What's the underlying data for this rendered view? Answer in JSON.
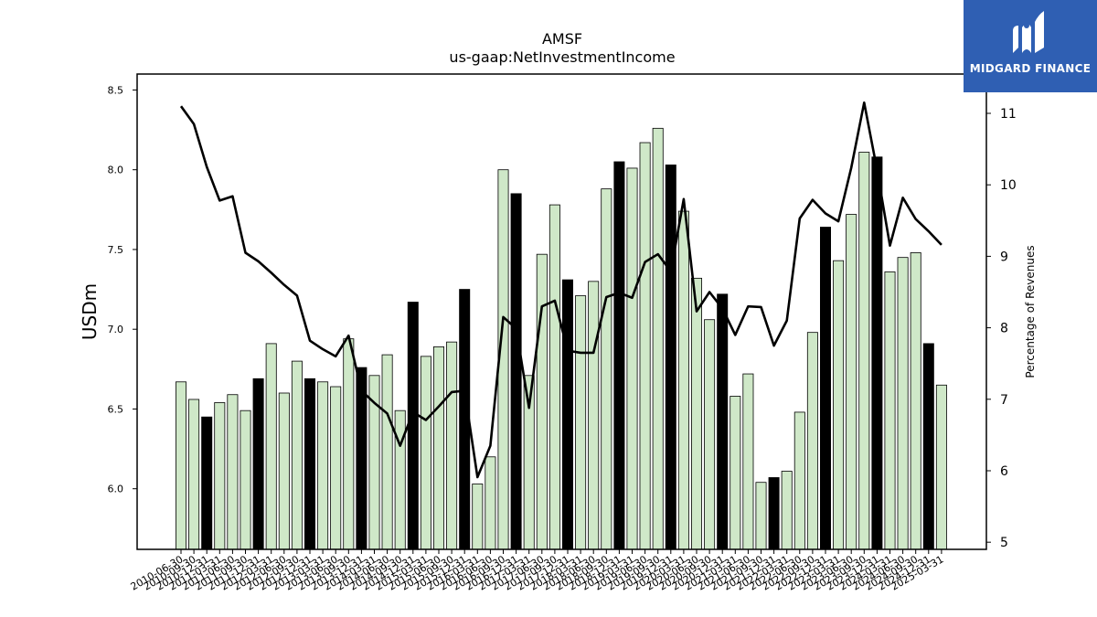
{
  "chart_data": {
    "type": "bar",
    "title": "AMSF",
    "subtitle": "us-gaap:NetInvestmentIncome",
    "ylabel": "USDm",
    "y2label": "Percentage of Revenues",
    "ylim": [
      5.62,
      8.6
    ],
    "y2lim": [
      4.9,
      11.55
    ],
    "yticks": [
      6.0,
      6.5,
      7.0,
      7.5,
      8.0,
      8.5
    ],
    "yticklabels": [
      "6.0",
      "6.5",
      "7.0",
      "7.5",
      "8.0",
      "8.5"
    ],
    "y2ticks": [
      5,
      6,
      7,
      8,
      9,
      10,
      11
    ],
    "y2ticklabels": [
      "5",
      "6",
      "7",
      "8",
      "9",
      "10",
      "11"
    ],
    "categories": [
      "2010-06-30",
      "2010-09-30",
      "2010-12-31",
      "2011-03-31",
      "2011-06-30",
      "2011-09-30",
      "2011-12-31",
      "2012-03-31",
      "2012-06-30",
      "2012-09-30",
      "2012-12-31",
      "2013-03-31",
      "2013-06-30",
      "2013-09-30",
      "2013-12-31",
      "2014-03-31",
      "2014-06-30",
      "2014-09-30",
      "2014-12-31",
      "2015-03-31",
      "2015-06-30",
      "2015-09-30",
      "2015-12-31",
      "2016-03-31",
      "2016-06-30",
      "2016-09-30",
      "2016-12-31",
      "2017-03-31",
      "2017-06-30",
      "2017-09-30",
      "2017-12-31",
      "2018-03-31",
      "2018-06-30",
      "2018-09-30",
      "2018-12-31",
      "2019-03-31",
      "2019-06-30",
      "2019-09-30",
      "2019-12-31",
      "2020-03-31",
      "2020-06-30",
      "2020-09-30",
      "2020-12-31",
      "2021-03-31",
      "2021-06-30",
      "2021-09-30",
      "2021-12-31",
      "2022-03-31",
      "2022-06-30",
      "2022-09-30",
      "2022-12-31",
      "2023-03-31",
      "2023-06-30",
      "2023-09-30",
      "2023-12-31",
      "2024-03-31",
      "2024-06-30",
      "2024-09-30",
      "2024-12-31",
      "2025-03-31"
    ],
    "series": [
      {
        "kind": "bar",
        "axis": "left",
        "values": [
          6.67,
          6.56,
          6.45,
          6.54,
          6.59,
          6.49,
          6.69,
          6.91,
          6.6,
          6.8,
          6.69,
          6.67,
          6.64,
          6.94,
          6.76,
          6.71,
          6.84,
          6.49,
          7.17,
          6.83,
          6.89,
          6.92,
          7.25,
          6.03,
          6.2,
          8.0,
          7.85,
          6.71,
          7.47,
          7.78,
          7.31,
          7.21,
          7.3,
          7.88,
          8.05,
          8.01,
          8.17,
          8.26,
          8.03,
          7.74,
          7.32,
          7.06,
          7.22,
          6.58,
          6.72,
          6.04,
          6.07,
          6.11,
          6.48,
          6.98,
          7.64,
          7.43,
          7.72,
          8.11,
          8.08,
          7.36,
          7.45,
          7.48,
          6.91,
          6.65
        ],
        "highlight": [
          false,
          false,
          true,
          false,
          false,
          false,
          true,
          false,
          false,
          false,
          true,
          false,
          false,
          false,
          true,
          false,
          false,
          false,
          true,
          false,
          false,
          false,
          true,
          false,
          false,
          false,
          true,
          false,
          false,
          false,
          true,
          false,
          false,
          false,
          true,
          false,
          false,
          false,
          true,
          false,
          false,
          false,
          true,
          false,
          false,
          false,
          true,
          false,
          false,
          false,
          true,
          false,
          false,
          false,
          true,
          false,
          false,
          false,
          true,
          false
        ],
        "color": "#cfe8c8",
        "highlight_color": "#000000"
      },
      {
        "kind": "line",
        "axis": "right",
        "values": [
          11.1,
          10.85,
          10.25,
          9.78,
          9.84,
          9.05,
          8.93,
          8.77,
          8.6,
          8.45,
          7.82,
          7.7,
          7.6,
          7.89,
          7.12,
          6.95,
          6.8,
          6.35,
          6.82,
          6.71,
          6.9,
          7.1,
          7.12,
          5.91,
          6.35,
          8.15,
          7.99,
          6.88,
          8.3,
          8.38,
          7.68,
          7.65,
          7.65,
          8.43,
          8.49,
          8.42,
          8.92,
          9.03,
          8.79,
          9.8,
          8.23,
          8.5,
          8.27,
          7.9,
          8.3,
          8.29,
          7.75,
          8.1,
          9.53,
          9.79,
          9.6,
          9.49,
          10.24,
          11.15,
          10.21,
          9.15,
          9.82,
          9.52,
          9.35,
          9.16
        ],
        "color": "#000000"
      }
    ],
    "grid": false,
    "legend": "none"
  },
  "logo": {
    "text": "MIDGARD FINANCE"
  }
}
